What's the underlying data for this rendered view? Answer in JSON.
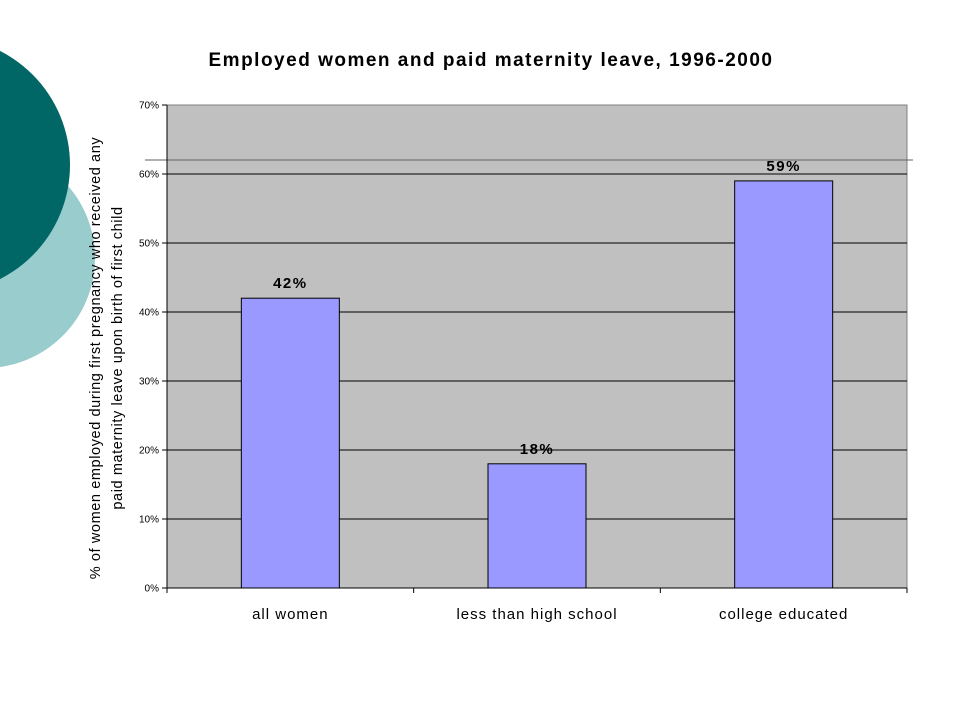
{
  "colors": {
    "bar_fill": "#9999ff",
    "plot_bg": "#c0c0c0",
    "deco_dark": "#006666",
    "deco_light": "#99cccc"
  },
  "chart_data": {
    "type": "bar",
    "title": "Employed women and paid maternity leave, 1996-2000",
    "ylabel_lines": [
      "% of women employed during first pregnancy who received any",
      "paid maternity leave upon birth of first child"
    ],
    "xlabel": "",
    "categories": [
      "all women",
      "less than high school",
      "college educated"
    ],
    "values": [
      42,
      18,
      59
    ],
    "data_labels": [
      "42%",
      "18%",
      "59%"
    ],
    "ylim": [
      0,
      70
    ],
    "yticks": [
      0,
      10,
      20,
      30,
      40,
      50,
      60,
      70
    ],
    "ytick_labels": [
      "0%",
      "10%",
      "20%",
      "30%",
      "40%",
      "50%",
      "60%",
      "70%"
    ],
    "grid": true,
    "legend": "none"
  }
}
